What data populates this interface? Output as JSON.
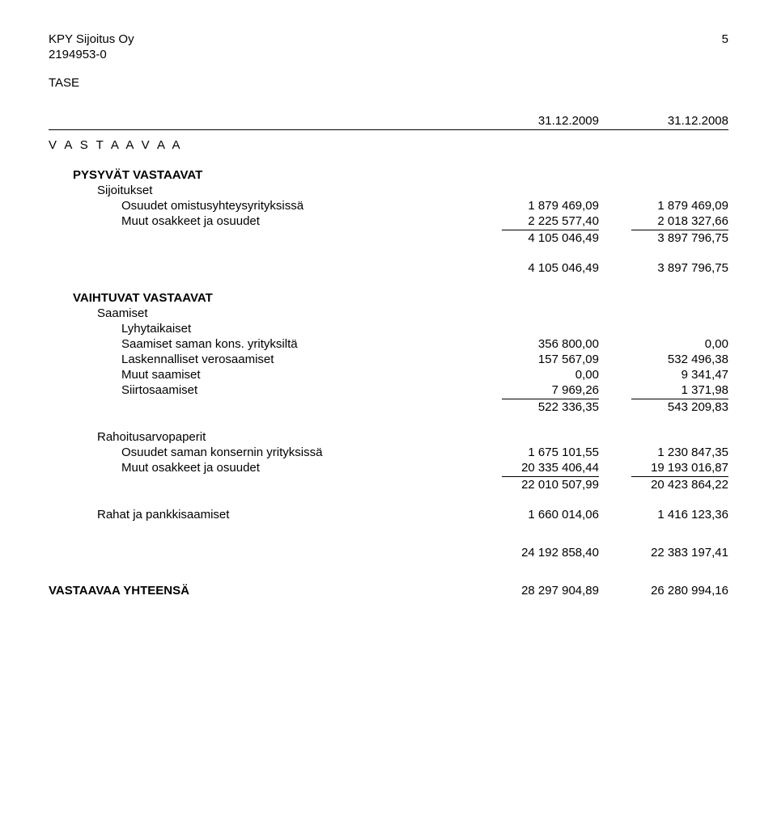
{
  "header": {
    "company": "KPY Sijoitus Oy",
    "businessId": "2194953-0",
    "pageNumber": "5",
    "docType": "TASE"
  },
  "dates": {
    "col1": "31.12.2009",
    "col2": "31.12.2008"
  },
  "vastaavaa": {
    "title": "V A S T A A V A A",
    "pysyvat": {
      "title": "PYSYVÄT VASTAAVAT",
      "sijoitukset": {
        "title": "Sijoitukset",
        "rows": [
          {
            "label": "Osuudet omistusyhteysyrityksissä",
            "v1": "1 879 469,09",
            "v2": "1 879 469,09"
          },
          {
            "label": "Muut osakkeet ja osuudet",
            "v1": "2 225 577,40",
            "v2": "2 018 327,66"
          }
        ],
        "subtotal": {
          "v1": "4 105 046,49",
          "v2": "3 897 796,75"
        }
      },
      "total": {
        "v1": "4 105 046,49",
        "v2": "3 897 796,75"
      }
    },
    "vaihtuvat": {
      "title": "VAIHTUVAT VASTAAVAT",
      "saamiset": {
        "title": "Saamiset",
        "lyhyt": {
          "title": "Lyhytaikaiset",
          "rows": [
            {
              "label": "Saamiset saman kons. yrityksiltä",
              "v1": "356 800,00",
              "v2": "0,00"
            },
            {
              "label": "Laskennalliset verosaamiset",
              "v1": "157 567,09",
              "v2": "532 496,38"
            },
            {
              "label": "Muut saamiset",
              "v1": "0,00",
              "v2": "9 341,47"
            },
            {
              "label": "Siirtosaamiset",
              "v1": "7 969,26",
              "v2": "1 371,98"
            }
          ],
          "subtotal": {
            "v1": "522 336,35",
            "v2": "543 209,83"
          }
        }
      },
      "rahoitus": {
        "title": "Rahoitusarvopaperit",
        "rows": [
          {
            "label": "Osuudet saman konsernin yrityksissä",
            "v1": "1 675 101,55",
            "v2": "1 230 847,35"
          },
          {
            "label": "Muut osakkeet ja osuudet",
            "v1": "20 335 406,44",
            "v2": "19 193 016,87"
          }
        ],
        "subtotal": {
          "v1": "22 010 507,99",
          "v2": "20 423 864,22"
        }
      },
      "rahat": {
        "label": "Rahat ja pankkisaamiset",
        "v1": "1 660 014,06",
        "v2": "1 416 123,36"
      },
      "total": {
        "v1": "24 192 858,40",
        "v2": "22 383 197,41"
      }
    },
    "grand": {
      "label": "VASTAAVAA YHTEENSÄ",
      "v1": "28 297 904,89",
      "v2": "26 280 994,16"
    }
  }
}
